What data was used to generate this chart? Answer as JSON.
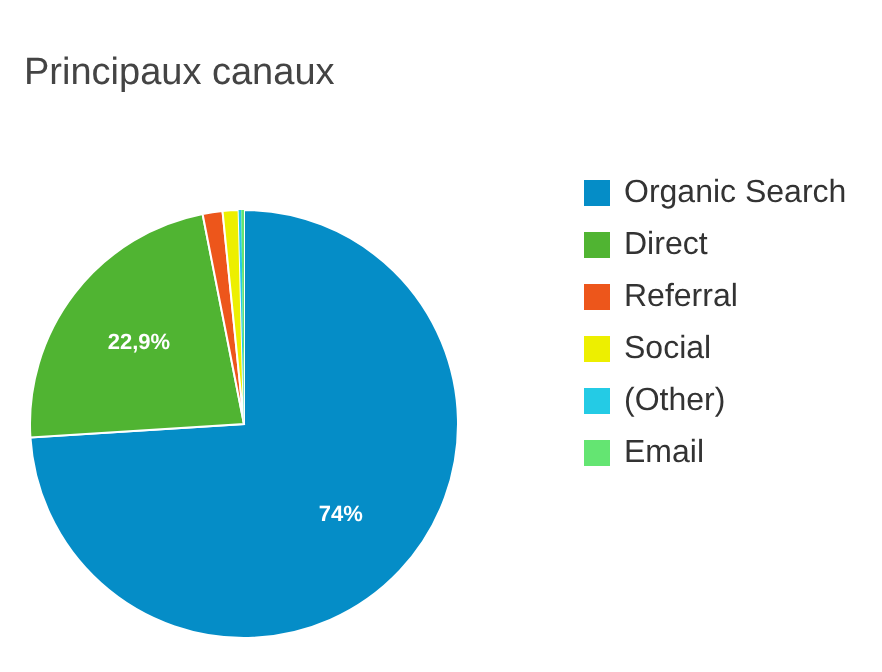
{
  "chart_data": {
    "type": "pie",
    "title": "Principaux canaux",
    "categories": [
      "Organic Search",
      "Direct",
      "Referral",
      "Social",
      "(Other)",
      "Email"
    ],
    "values": [
      74,
      22.9,
      1.5,
      1.2,
      0.2,
      0.2
    ],
    "colors": [
      "#058dc7",
      "#50b432",
      "#ed561b",
      "#edef00",
      "#24cbe5",
      "#64e572"
    ],
    "value_labels": [
      "74%",
      "22,9%",
      null,
      null,
      null,
      null
    ],
    "legend": "right"
  }
}
